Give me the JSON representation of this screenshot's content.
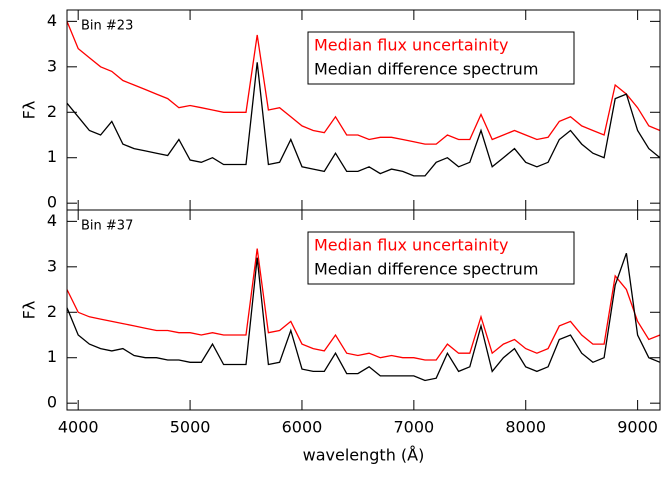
{
  "chart_data": [
    {
      "type": "line",
      "annotation": "Bin #23",
      "ylabel": "Fλ",
      "legend": "upper right",
      "x": [
        3900,
        4000,
        4100,
        4200,
        4300,
        4400,
        4500,
        4600,
        4700,
        4800,
        4900,
        5000,
        5100,
        5200,
        5300,
        5400,
        5500,
        5600,
        5700,
        5800,
        5900,
        6000,
        6100,
        6200,
        6300,
        6400,
        6500,
        6600,
        6700,
        6800,
        6900,
        7000,
        7100,
        7200,
        7300,
        7400,
        7500,
        7600,
        7700,
        7800,
        7900,
        8000,
        8100,
        8200,
        8300,
        8400,
        8500,
        8600,
        8700,
        8800,
        8900,
        9000,
        9100,
        9200
      ],
      "xlim": [
        3900,
        9200
      ],
      "xticks": [
        4000,
        5000,
        6000,
        7000,
        8000,
        9000
      ],
      "ylim": [
        -0.15,
        4.25
      ],
      "yticks": [
        0,
        1,
        2,
        3,
        4
      ],
      "series": [
        {
          "name": "Median flux uncertainity",
          "color": "#ff0000",
          "values": [
            4.0,
            3.4,
            3.2,
            3.0,
            2.9,
            2.7,
            2.6,
            2.5,
            2.4,
            2.3,
            2.1,
            2.15,
            2.1,
            2.05,
            2.0,
            2.0,
            2.0,
            3.7,
            2.05,
            2.1,
            1.9,
            1.7,
            1.6,
            1.55,
            1.9,
            1.5,
            1.5,
            1.4,
            1.45,
            1.45,
            1.4,
            1.35,
            1.3,
            1.3,
            1.5,
            1.4,
            1.4,
            1.95,
            1.4,
            1.5,
            1.6,
            1.5,
            1.4,
            1.45,
            1.8,
            1.9,
            1.7,
            1.6,
            1.5,
            2.6,
            2.4,
            2.1,
            1.7,
            1.6
          ]
        },
        {
          "name": "Median difference spectrum",
          "color": "#000000",
          "values": [
            2.2,
            1.9,
            1.6,
            1.5,
            1.8,
            1.3,
            1.2,
            1.15,
            1.1,
            1.05,
            1.4,
            0.95,
            0.9,
            1.0,
            0.85,
            0.85,
            0.85,
            3.1,
            0.85,
            0.9,
            1.4,
            0.8,
            0.75,
            0.7,
            1.1,
            0.7,
            0.7,
            0.8,
            0.65,
            0.75,
            0.7,
            0.6,
            0.6,
            0.9,
            1.0,
            0.8,
            0.9,
            1.6,
            0.8,
            1.0,
            1.2,
            0.9,
            0.8,
            0.9,
            1.4,
            1.6,
            1.3,
            1.1,
            1.0,
            2.3,
            2.4,
            1.6,
            1.2,
            1.0
          ]
        }
      ]
    },
    {
      "type": "line",
      "annotation": "Bin #37",
      "ylabel": "Fλ",
      "xlabel": "wavelength (Å)",
      "legend": "upper right",
      "x": [
        3900,
        4000,
        4100,
        4200,
        4300,
        4400,
        4500,
        4600,
        4700,
        4800,
        4900,
        5000,
        5100,
        5200,
        5300,
        5400,
        5500,
        5600,
        5700,
        5800,
        5900,
        6000,
        6100,
        6200,
        6300,
        6400,
        6500,
        6600,
        6700,
        6800,
        6900,
        7000,
        7100,
        7200,
        7300,
        7400,
        7500,
        7600,
        7700,
        7800,
        7900,
        8000,
        8100,
        8200,
        8300,
        8400,
        8500,
        8600,
        8700,
        8800,
        8900,
        9000,
        9100,
        9200
      ],
      "xlim": [
        3900,
        9200
      ],
      "xticks": [
        4000,
        5000,
        6000,
        7000,
        8000,
        9000
      ],
      "ylim": [
        -0.15,
        4.25
      ],
      "yticks": [
        0,
        1,
        2,
        3,
        4
      ],
      "series": [
        {
          "name": "Median flux uncertainity",
          "color": "#ff0000",
          "values": [
            2.5,
            2.0,
            1.9,
            1.85,
            1.8,
            1.75,
            1.7,
            1.65,
            1.6,
            1.6,
            1.55,
            1.55,
            1.5,
            1.55,
            1.5,
            1.5,
            1.5,
            3.4,
            1.55,
            1.6,
            1.8,
            1.3,
            1.2,
            1.15,
            1.5,
            1.1,
            1.05,
            1.1,
            1.0,
            1.05,
            1.0,
            1.0,
            0.95,
            0.95,
            1.3,
            1.1,
            1.1,
            1.9,
            1.1,
            1.3,
            1.4,
            1.2,
            1.1,
            1.2,
            1.7,
            1.8,
            1.5,
            1.3,
            1.3,
            2.8,
            2.5,
            1.8,
            1.4,
            1.5
          ]
        },
        {
          "name": "Median difference spectrum",
          "color": "#000000",
          "values": [
            2.1,
            1.5,
            1.3,
            1.2,
            1.15,
            1.2,
            1.05,
            1.0,
            1.0,
            0.95,
            0.95,
            0.9,
            0.9,
            1.3,
            0.85,
            0.85,
            0.85,
            3.2,
            0.85,
            0.9,
            1.6,
            0.75,
            0.7,
            0.7,
            1.1,
            0.65,
            0.65,
            0.8,
            0.6,
            0.6,
            0.6,
            0.6,
            0.5,
            0.55,
            1.1,
            0.7,
            0.8,
            1.7,
            0.7,
            1.0,
            1.2,
            0.8,
            0.7,
            0.8,
            1.4,
            1.5,
            1.1,
            0.9,
            1.0,
            2.6,
            3.3,
            1.5,
            1.0,
            0.9
          ]
        }
      ]
    }
  ]
}
